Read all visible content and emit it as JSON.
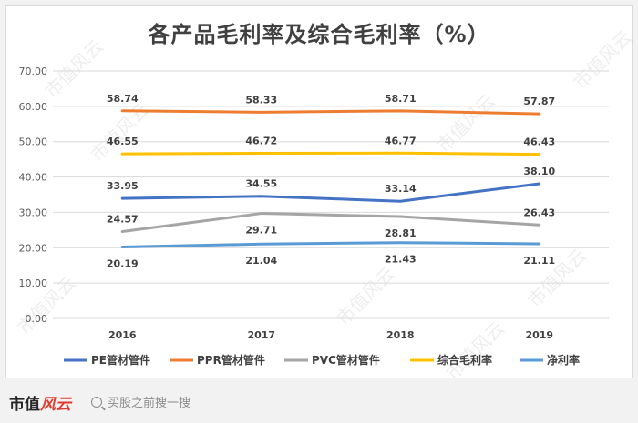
{
  "chart_data": {
    "type": "line",
    "title": "各产品毛利率及综合毛利率（%）",
    "categories": [
      "2016",
      "2017",
      "2018",
      "2019"
    ],
    "ylim": [
      0,
      70
    ],
    "yticks": [
      "0.00",
      "10.00",
      "20.00",
      "30.00",
      "40.00",
      "50.00",
      "60.00",
      "70.00"
    ],
    "grid": true,
    "legend_position": "bottom",
    "series": [
      {
        "name": "PE管材管件",
        "color": "#4472c4",
        "values": [
          33.95,
          34.55,
          33.14,
          38.1
        ],
        "labels": [
          "33.95",
          "34.55",
          "33.14",
          "38.10"
        ],
        "label_side": [
          "above",
          "above",
          "above",
          "above"
        ]
      },
      {
        "name": "PPR管材管件",
        "color": "#ed7d31",
        "values": [
          58.74,
          58.33,
          58.71,
          57.87
        ],
        "labels": [
          "58.74",
          "58.33",
          "58.71",
          "57.87"
        ],
        "label_side": [
          "above",
          "above",
          "above",
          "above"
        ]
      },
      {
        "name": "PVC管材管件",
        "color": "#a5a5a5",
        "values": [
          24.57,
          29.71,
          28.81,
          26.43
        ],
        "labels": [
          "24.57",
          "29.71",
          "28.81",
          "26.43"
        ],
        "label_side": [
          "above",
          "below",
          "below",
          "above"
        ]
      },
      {
        "name": "综合毛利率",
        "color": "#ffc000",
        "values": [
          46.55,
          46.72,
          46.77,
          46.43
        ],
        "labels": [
          "46.55",
          "46.72",
          "46.77",
          "46.43"
        ],
        "label_side": [
          "above",
          "above",
          "above",
          "above"
        ]
      },
      {
        "name": "净利率",
        "color": "#5b9bd5",
        "values": [
          20.19,
          21.04,
          21.43,
          21.11
        ],
        "labels": [
          "20.19",
          "21.04",
          "21.43",
          "21.11"
        ],
        "label_side": [
          "below",
          "below",
          "below",
          "below"
        ]
      }
    ]
  },
  "watermark": "市值风云",
  "footer": {
    "brand_black": "市值",
    "brand_red": "风云",
    "search_text": "买股之前搜一搜"
  }
}
